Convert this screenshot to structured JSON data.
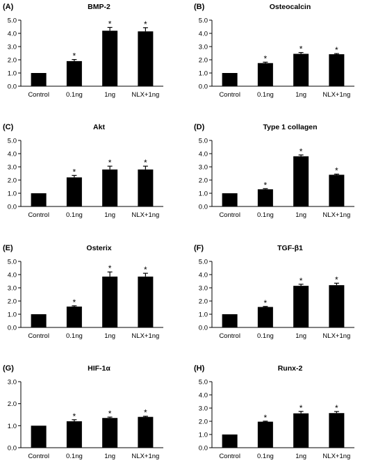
{
  "chart_data": [
    {
      "panel": "(A)",
      "title": "BMP-2",
      "type": "bar",
      "categories": [
        "Control",
        "0.1ng",
        "1ng",
        "NLX+1ng"
      ],
      "values": [
        1.0,
        1.9,
        4.2,
        4.15
      ],
      "errors": [
        0.0,
        0.12,
        0.25,
        0.28
      ],
      "significance": [
        "",
        "*",
        "*",
        "*"
      ],
      "yticks": [
        "0.0",
        "1.0",
        "2.0",
        "3.0",
        "4.0",
        "5.0"
      ],
      "ylim": [
        0,
        5
      ],
      "bar_color": "#000000"
    },
    {
      "panel": "(B)",
      "title": "Osteocalcin",
      "type": "bar",
      "categories": [
        "Control",
        "0.1ng",
        "1ng",
        "NLX+1ng"
      ],
      "values": [
        1.0,
        1.75,
        2.45,
        2.42
      ],
      "errors": [
        0.0,
        0.07,
        0.1,
        0.05
      ],
      "significance": [
        "",
        "*",
        "*",
        "*"
      ],
      "yticks": [
        "0.0",
        "1.0",
        "2.0",
        "3.0",
        "4.0",
        "5.0"
      ],
      "ylim": [
        0,
        5
      ],
      "bar_color": "#000000"
    },
    {
      "panel": "(C)",
      "title": "Akt",
      "type": "bar",
      "categories": [
        "Control",
        "0.1ng",
        "1ng",
        "NLX+1ng"
      ],
      "values": [
        1.0,
        2.2,
        2.8,
        2.8
      ],
      "errors": [
        0.0,
        0.15,
        0.25,
        0.25
      ],
      "significance": [
        "",
        "*",
        "*",
        "*"
      ],
      "yticks": [
        "0.0",
        "1.0",
        "2.0",
        "3.0",
        "4.0",
        "5.0"
      ],
      "ylim": [
        0,
        5
      ],
      "bar_color": "#000000"
    },
    {
      "panel": "(D)",
      "title": "Type 1 collagen",
      "type": "bar",
      "categories": [
        "Control",
        "0.1ng",
        "1ng",
        "NLX+1ng"
      ],
      "values": [
        1.0,
        1.3,
        3.8,
        2.4
      ],
      "errors": [
        0.0,
        0.05,
        0.1,
        0.05
      ],
      "significance": [
        "",
        "*",
        "*",
        "*"
      ],
      "yticks": [
        "0.0",
        "1.0",
        "2.0",
        "3.0",
        "4.0",
        "5.0"
      ],
      "ylim": [
        0,
        5
      ],
      "bar_color": "#000000"
    },
    {
      "panel": "(E)",
      "title": "Osterix",
      "type": "bar",
      "categories": [
        "Control",
        "0.1ng",
        "1ng",
        "NLX+1ng"
      ],
      "values": [
        1.0,
        1.58,
        3.85,
        3.85
      ],
      "errors": [
        0.0,
        0.06,
        0.35,
        0.25
      ],
      "significance": [
        "",
        "*",
        "*",
        "*"
      ],
      "yticks": [
        "0.0",
        "1.0",
        "2.0",
        "3.0",
        "4.0",
        "5.0"
      ],
      "ylim": [
        0,
        5
      ],
      "bar_color": "#000000"
    },
    {
      "panel": "(F)",
      "title": "TGF-β1",
      "type": "bar",
      "categories": [
        "Control",
        "0.1ng",
        "1ng",
        "NLX+1ng"
      ],
      "values": [
        1.0,
        1.55,
        3.15,
        3.2
      ],
      "errors": [
        0.0,
        0.04,
        0.12,
        0.15
      ],
      "significance": [
        "",
        "*",
        "*",
        "*"
      ],
      "yticks": [
        "0.0",
        "1.0",
        "2.0",
        "3.0",
        "4.0",
        "5.0"
      ],
      "ylim": [
        0,
        5
      ],
      "bar_color": "#000000"
    },
    {
      "panel": "(G)",
      "title": "HIF-1α",
      "type": "bar",
      "categories": [
        "Control",
        "0.1ng",
        "1ng",
        "NLX+1ng"
      ],
      "values": [
        1.0,
        1.2,
        1.35,
        1.4
      ],
      "errors": [
        0.0,
        0.07,
        0.04,
        0.03
      ],
      "significance": [
        "",
        "*",
        "*",
        "*"
      ],
      "yticks": [
        "0.0",
        "1.0",
        "2.0",
        "3.0"
      ],
      "ylim": [
        0,
        3
      ],
      "bar_color": "#000000"
    },
    {
      "panel": "(H)",
      "title": "Runx-2",
      "type": "bar",
      "categories": [
        "Control",
        "0.1ng",
        "1ng",
        "NLX+1ng"
      ],
      "values": [
        1.0,
        1.97,
        2.6,
        2.62
      ],
      "errors": [
        0.0,
        0.04,
        0.15,
        0.12
      ],
      "significance": [
        "",
        "*",
        "*",
        "*"
      ],
      "yticks": [
        "0.0",
        "1.0",
        "2.0",
        "3.0",
        "4.0",
        "5.0"
      ],
      "ylim": [
        0,
        5
      ],
      "bar_color": "#000000"
    }
  ]
}
